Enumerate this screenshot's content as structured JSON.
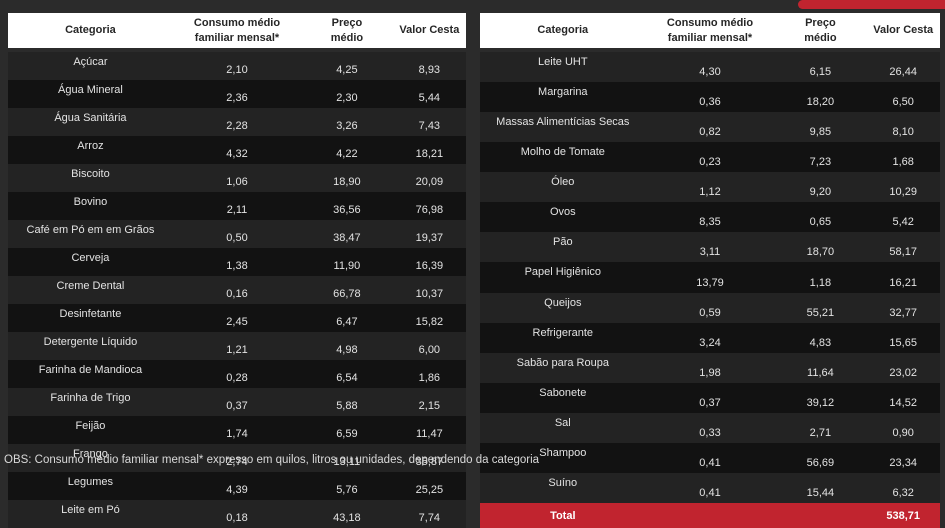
{
  "page": {
    "background": "#2b2b2b",
    "accent_red": "#c1242f",
    "obs_note": "OBS: Consumo médio familiar mensal* expresso em quilos, litros ou unidades, dependendo da categoria"
  },
  "headers": {
    "categoria": "Categoria",
    "consumo": "Consumo médio familiar mensal*",
    "preco": "Preço médio",
    "valor": "Valor Cesta"
  },
  "chart_data": [
    {
      "type": "table",
      "columns": [
        "Categoria",
        "Consumo médio familiar mensal*",
        "Preço médio",
        "Valor Cesta"
      ],
      "rows": [
        [
          "Açúcar",
          "2,10",
          "4,25",
          "8,93"
        ],
        [
          "Água Mineral",
          "2,36",
          "2,30",
          "5,44"
        ],
        [
          "Água Sanitária",
          "2,28",
          "3,26",
          "7,43"
        ],
        [
          "Arroz",
          "4,32",
          "4,22",
          "18,21"
        ],
        [
          "Biscoito",
          "1,06",
          "18,90",
          "20,09"
        ],
        [
          "Bovino",
          "2,11",
          "36,56",
          "76,98"
        ],
        [
          "Café em Pó em em Grãos",
          "0,50",
          "38,47",
          "19,37"
        ],
        [
          "Cerveja",
          "1,38",
          "11,90",
          "16,39"
        ],
        [
          "Creme Dental",
          "0,16",
          "66,78",
          "10,37"
        ],
        [
          "Desinfetante",
          "2,45",
          "6,47",
          "15,82"
        ],
        [
          "Detergente Líquido",
          "1,21",
          "4,98",
          "6,00"
        ],
        [
          "Farinha de Mandioca",
          "0,28",
          "6,54",
          "1,86"
        ],
        [
          "Farinha de Trigo",
          "0,37",
          "5,88",
          "2,15"
        ],
        [
          "Feijão",
          "1,74",
          "6,59",
          "11,47"
        ],
        [
          "Frango",
          "2,74",
          "13,11",
          "35,87"
        ],
        [
          "Legumes",
          "4,39",
          "5,76",
          "25,25"
        ],
        [
          "Leite em Pó",
          "0,18",
          "43,18",
          "7,74"
        ]
      ]
    },
    {
      "type": "table",
      "columns": [
        "Categoria",
        "Consumo médio familiar mensal*",
        "Preço médio",
        "Valor Cesta"
      ],
      "rows": [
        [
          "Leite UHT",
          "4,30",
          "6,15",
          "26,44"
        ],
        [
          "Margarina",
          "0,36",
          "18,20",
          "6,50"
        ],
        [
          "Massas Alimentícias Secas",
          "0,82",
          "9,85",
          "8,10"
        ],
        [
          "Molho de Tomate",
          "0,23",
          "7,23",
          "1,68"
        ],
        [
          "Óleo",
          "1,12",
          "9,20",
          "10,29"
        ],
        [
          "Ovos",
          "8,35",
          "0,65",
          "5,42"
        ],
        [
          "Pão",
          "3,11",
          "18,70",
          "58,17"
        ],
        [
          "Papel Higiênico",
          "13,79",
          "1,18",
          "16,21"
        ],
        [
          "Queijos",
          "0,59",
          "55,21",
          "32,77"
        ],
        [
          "Refrigerante",
          "3,24",
          "4,83",
          "15,65"
        ],
        [
          "Sabão para Roupa",
          "1,98",
          "11,64",
          "23,02"
        ],
        [
          "Sabonete",
          "0,37",
          "39,12",
          "14,52"
        ],
        [
          "Sal",
          "0,33",
          "2,71",
          "0,90"
        ],
        [
          "Shampoo",
          "0,41",
          "56,69",
          "23,34"
        ],
        [
          "Suíno",
          "0,41",
          "15,44",
          "6,32"
        ]
      ],
      "total_row": {
        "label": "Total",
        "valor": "538,71"
      }
    }
  ]
}
